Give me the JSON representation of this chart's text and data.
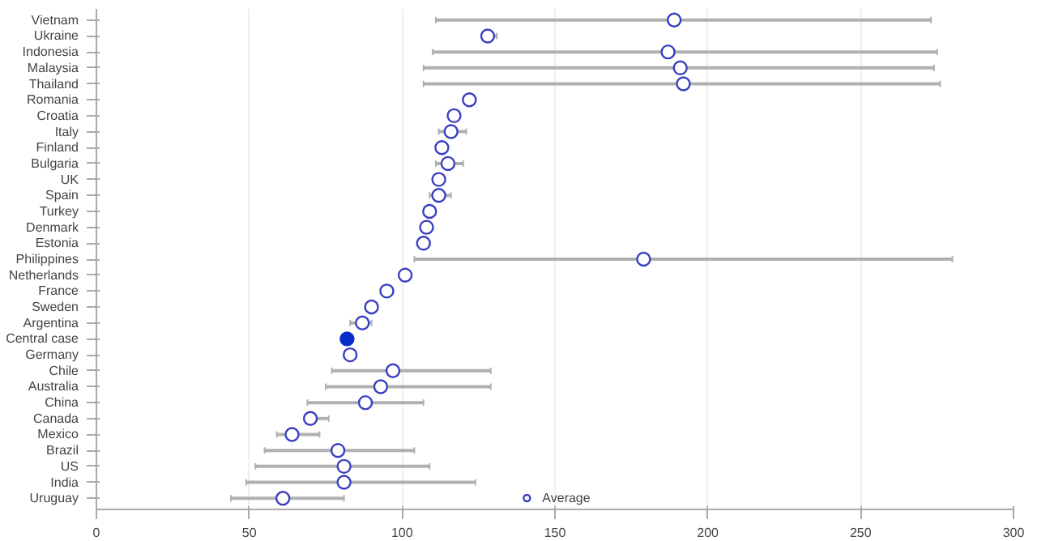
{
  "chart_data": {
    "type": "scatter",
    "orientation": "horizontal",
    "categories": [
      "Vietnam",
      "Ukraine",
      "Indonesia",
      "Malaysia",
      "Thailand",
      "Romania",
      "Croatia",
      "Italy",
      "Finland",
      "Bulgaria",
      "UK",
      "Spain",
      "Turkey",
      "Denmark",
      "Estonia",
      "Philippines",
      "Netherlands",
      "France",
      "Sweden",
      "Argentina",
      "Central case",
      "Germany",
      "Chile",
      "Australia",
      "China",
      "Canada",
      "Mexico",
      "Brazil",
      "US",
      "India",
      "Uruguay"
    ],
    "series": [
      {
        "name": "Average",
        "color": "#3a3fc0",
        "values": [
          189,
          128,
          187,
          191,
          192,
          122,
          117,
          116,
          113,
          115,
          112,
          112,
          109,
          108,
          107,
          179,
          101,
          95,
          90,
          87,
          null,
          83,
          97,
          93,
          88,
          70,
          64,
          79,
          81,
          81,
          61
        ],
        "errors": [
          [
            111,
            273
          ],
          [
            127,
            131
          ],
          [
            110,
            275
          ],
          [
            107,
            274
          ],
          [
            107,
            276
          ],
          null,
          null,
          [
            112,
            121
          ],
          null,
          [
            111,
            120
          ],
          null,
          [
            109,
            116
          ],
          null,
          null,
          null,
          [
            104,
            280
          ],
          null,
          [
            93,
            97
          ],
          null,
          [
            83,
            90
          ],
          null,
          null,
          [
            77,
            129
          ],
          [
            75,
            129
          ],
          [
            69,
            107
          ],
          [
            68,
            76
          ],
          [
            59,
            73
          ],
          [
            55,
            104
          ],
          [
            52,
            109
          ],
          [
            49,
            124
          ],
          [
            44,
            81
          ]
        ]
      },
      {
        "color": "#0a2fc8",
        "values": [
          null,
          null,
          null,
          null,
          null,
          null,
          null,
          null,
          null,
          null,
          null,
          null,
          null,
          null,
          null,
          null,
          null,
          null,
          null,
          null,
          82,
          null,
          null,
          null,
          null,
          null,
          null,
          null,
          null,
          null,
          null
        ]
      }
    ],
    "xlim": [
      0,
      300
    ],
    "xticks": [
      0,
      50,
      100,
      150,
      200,
      250,
      300
    ],
    "grid": "x",
    "legend": "bottom",
    "marker": "circle"
  }
}
